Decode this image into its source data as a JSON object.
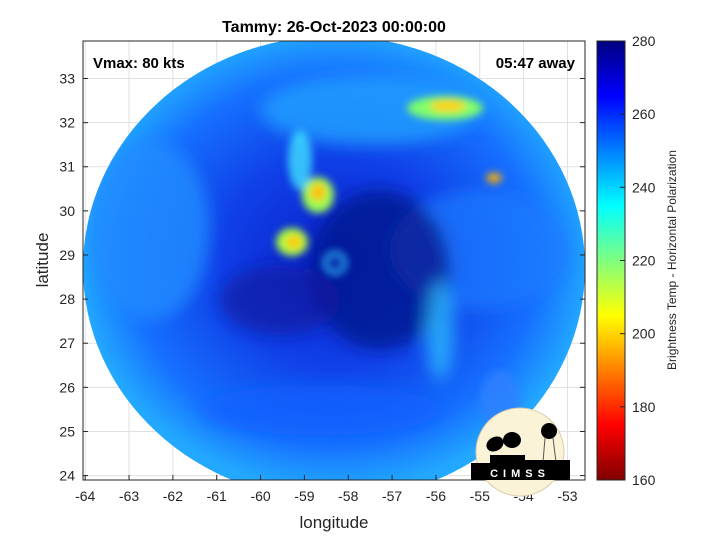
{
  "chart_data": {
    "type": "heatmap",
    "title": "Tammy: 26-Oct-2023 00:00:00",
    "xlabel": "longitude",
    "ylabel": "latitude",
    "xlim": [
      -64.05,
      -52.6
    ],
    "ylim": [
      23.9,
      33.85
    ],
    "xticks": [
      "-64",
      "-63",
      "-62",
      "-61",
      "-60",
      "-59",
      "-58",
      "-57",
      "-56",
      "-55",
      "-54",
      "-53"
    ],
    "yticks": [
      "24",
      "25",
      "26",
      "27",
      "28",
      "29",
      "30",
      "31",
      "32",
      "33"
    ],
    "grid": true,
    "colormap": "jet",
    "colorbar": {
      "label": "Brightness Temp - Horizontal Polarization",
      "range": [
        160,
        280
      ],
      "ticks": [
        "160",
        "180",
        "200",
        "220",
        "240",
        "260",
        "280"
      ]
    },
    "annotations": {
      "vmax": "Vmax: 80 kts",
      "time_away": "05:47 away"
    },
    "storm_center": {
      "lon": -58.6,
      "lat": 28.6
    },
    "logo": "CIMSS"
  }
}
